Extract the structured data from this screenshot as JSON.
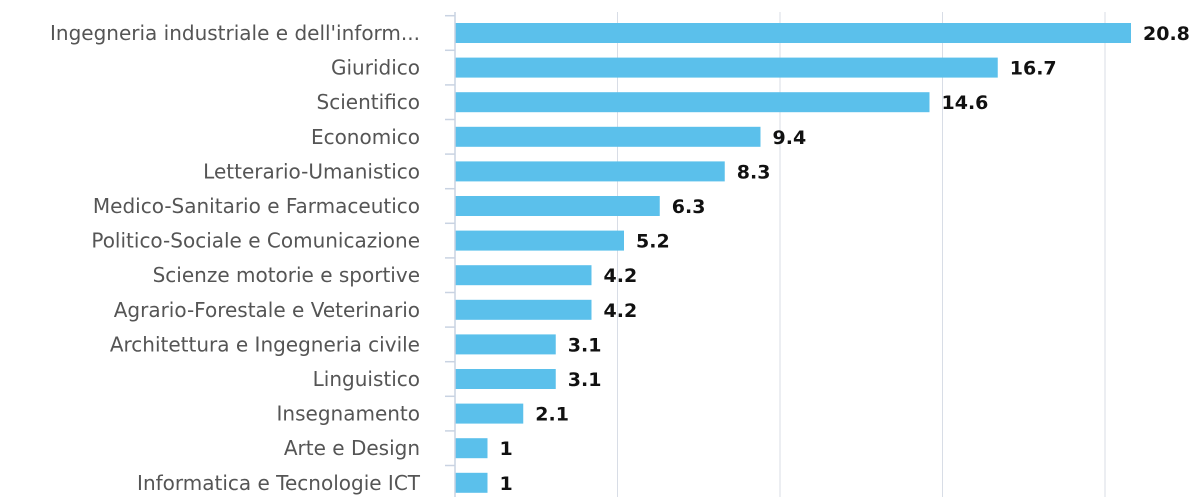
{
  "chart_data": {
    "type": "bar",
    "orientation": "horizontal",
    "title": "",
    "xlabel": "",
    "ylabel": "",
    "xlim": [
      0,
      22
    ],
    "grid": true,
    "bar_color": "#5bc0eb",
    "categories": [
      "Ingegneria industriale e dell'inform...",
      "Giuridico",
      "Scientifico",
      "Economico",
      "Letterario-Umanistico",
      "Medico-Sanitario e Farmaceutico",
      "Politico-Sociale e Comunicazione",
      "Scienze motorie e sportive",
      "Agrario-Forestale e Veterinario",
      "Architettura e Ingegneria civile",
      "Linguistico",
      "Insegnamento",
      "Arte e Design",
      "Informatica e Tecnologie ICT"
    ],
    "values": [
      20.8,
      16.7,
      14.6,
      9.4,
      8.3,
      6.3,
      5.2,
      4.2,
      4.2,
      3.1,
      3.1,
      2.1,
      1,
      1
    ],
    "value_labels": [
      "20.8",
      "16.7",
      "14.6",
      "9.4",
      "8.3",
      "6.3",
      "5.2",
      "4.2",
      "4.2",
      "3.1",
      "3.1",
      "2.1",
      "1",
      "1"
    ]
  }
}
